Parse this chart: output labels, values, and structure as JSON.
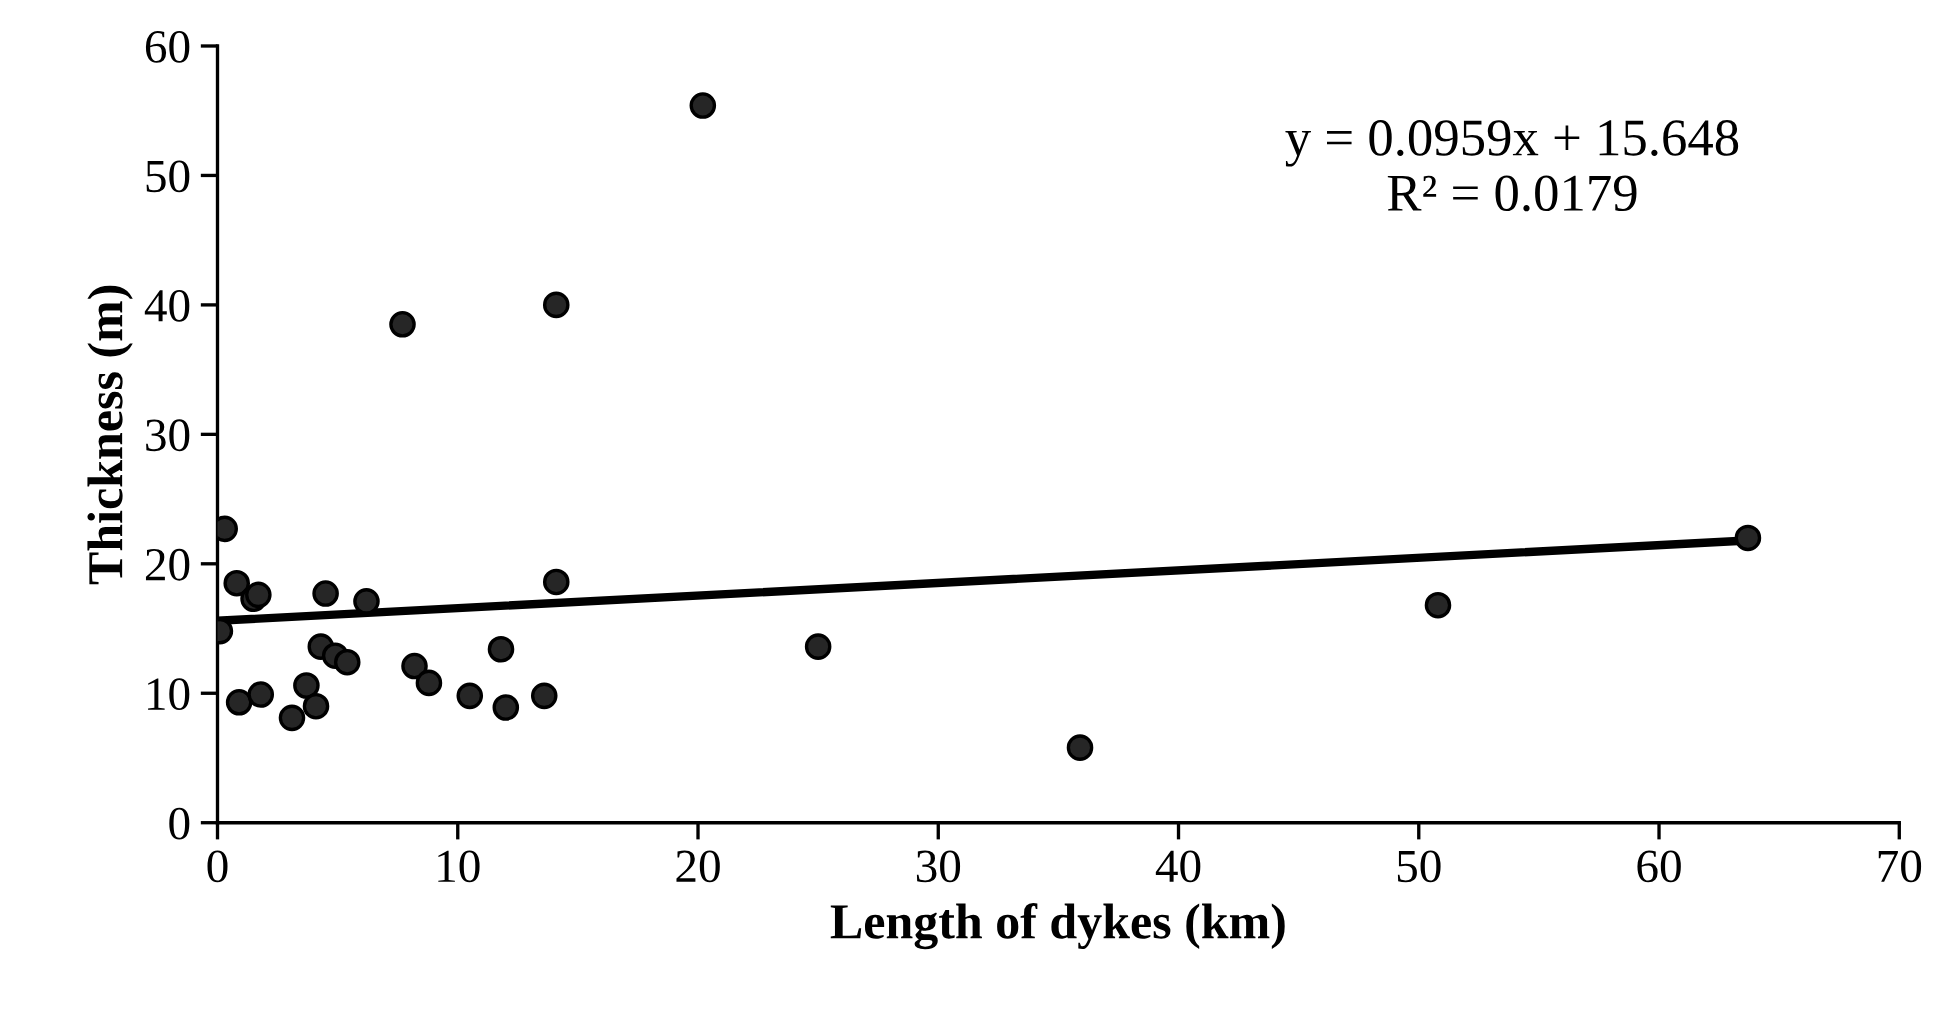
{
  "chart_data": {
    "type": "scatter",
    "xlabel": "Length of dykes (km)",
    "ylabel": "Thickness (m)",
    "xlim": [
      0,
      70
    ],
    "xticks": [
      0,
      10,
      20,
      30,
      40,
      50,
      60,
      70
    ],
    "ylim": [
      0,
      60
    ],
    "yticks": [
      0,
      10,
      20,
      30,
      40,
      50,
      60
    ],
    "grid": false,
    "marker": "circle",
    "series": [
      {
        "color": "#262626",
        "x": [
          0.1,
          0.3,
          0.8,
          1.5,
          1.7,
          0.9,
          1.8,
          3.1,
          3.7,
          4.1,
          4.3,
          4.5,
          4.9,
          5.4,
          6.2,
          7.7,
          8.2,
          8.8,
          10.5,
          11.8,
          12.0,
          13.6,
          14.1,
          14.1,
          20.2,
          25.0,
          35.9,
          50.8,
          63.7
        ],
        "values": [
          14.8,
          22.7,
          18.5,
          17.3,
          17.6,
          9.3,
          9.9,
          8.1,
          10.6,
          9.0,
          13.6,
          17.7,
          12.9,
          12.4,
          17.1,
          38.5,
          12.1,
          10.8,
          9.8,
          13.4,
          8.9,
          9.8,
          40.0,
          18.6,
          55.4,
          13.6,
          5.8,
          16.8,
          22.0
        ]
      },
      {
        "type": "line",
        "color": "#000000",
        "x": [
          0,
          63.7
        ],
        "values": [
          15.6,
          21.8
        ],
        "line_style": "solid",
        "marker": "none"
      }
    ],
    "annotations": [
      "y = 0.0959x + 15.648\nR² = 0.0179"
    ]
  }
}
